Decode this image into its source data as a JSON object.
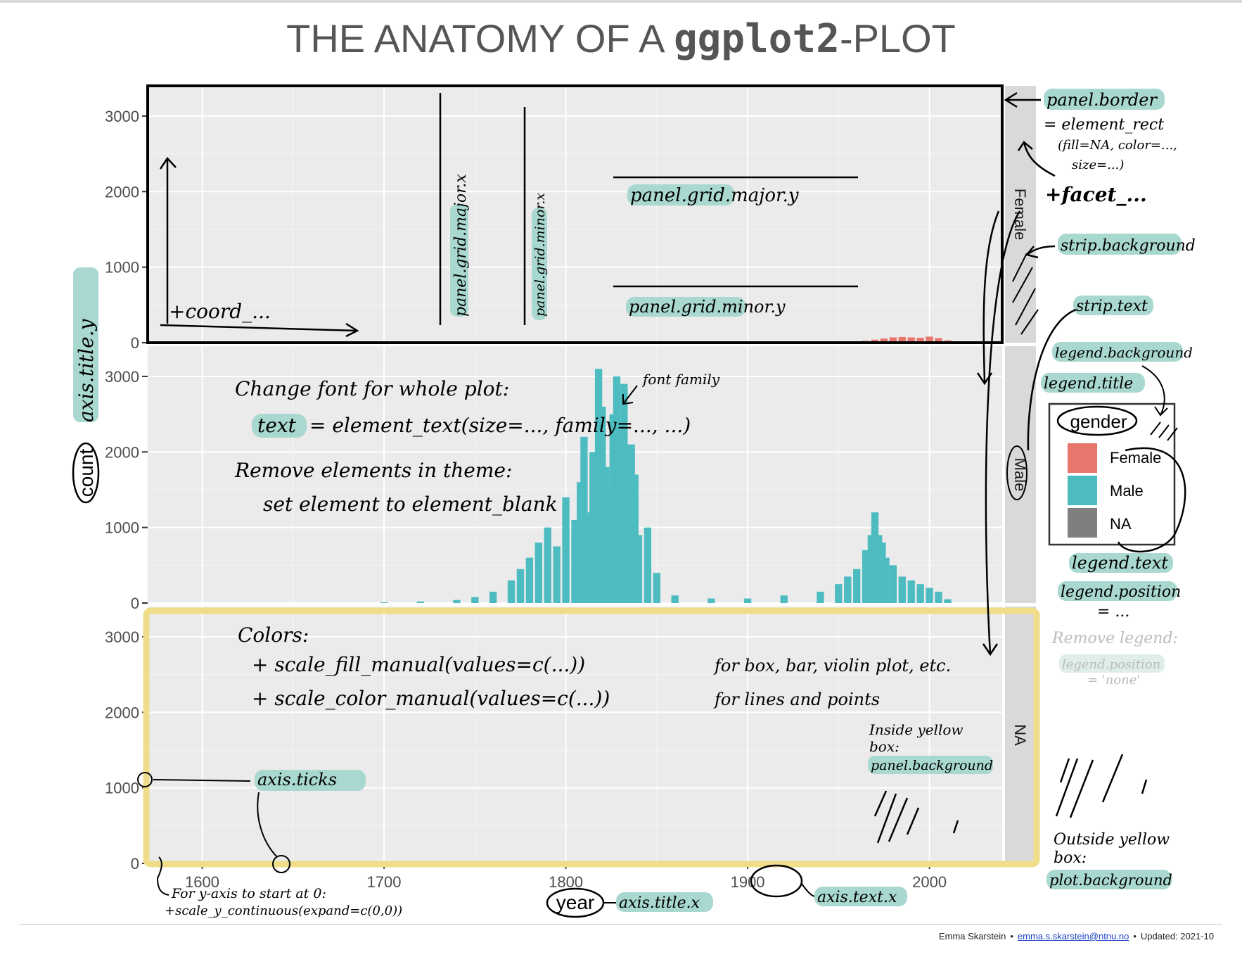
{
  "title": {
    "prefix": "THE ANATOMY OF A ",
    "mono": "ggplot2",
    "suffix": "-PLOT"
  },
  "footer": {
    "author": "Emma Skarstein",
    "email": "emma.s.skarstein@ntnu.no",
    "updated": "Updated: 2021-10"
  },
  "colors": {
    "panel_bg": "#ebebeb",
    "grid_major": "#ffffff",
    "strip_bg": "#d9d9d9",
    "female": "#e8766d",
    "male": "#4dbcc1",
    "na": "#7f7f7f",
    "highlight": "#a8d8cf",
    "yellow": "#f0dd8a"
  },
  "chart_data": {
    "type": "bar",
    "facets": [
      "Female",
      "Male",
      "NA"
    ],
    "x": {
      "title": "year",
      "lim": [
        1570,
        2040
      ],
      "ticks": [
        1600,
        1700,
        1800,
        1900,
        2000
      ],
      "tick_labels": [
        "1600",
        "1700",
        "1800",
        "1900",
        "2000"
      ]
    },
    "y": {
      "title": "count",
      "lim": [
        0,
        3400
      ],
      "ticks": [
        0,
        1000,
        2000,
        3000
      ],
      "tick_labels": [
        "0",
        "1000",
        "2000",
        "3000"
      ]
    },
    "legend": {
      "title": "gender",
      "position": "right",
      "entries": [
        "Female",
        "Male",
        "NA"
      ]
    },
    "grid": true,
    "series": [
      {
        "name": "Female",
        "x": [
          1960,
          1965,
          1970,
          1975,
          1980,
          1985,
          1990,
          1995,
          2000,
          2005,
          2010
        ],
        "values": [
          15,
          25,
          40,
          55,
          70,
          75,
          70,
          65,
          80,
          60,
          30
        ]
      },
      {
        "name": "Male",
        "x": [
          1700,
          1720,
          1740,
          1750,
          1760,
          1770,
          1775,
          1780,
          1785,
          1790,
          1795,
          1800,
          1805,
          1808,
          1810,
          1812,
          1815,
          1818,
          1820,
          1822,
          1824,
          1826,
          1828,
          1830,
          1832,
          1834,
          1836,
          1838,
          1840,
          1845,
          1850,
          1860,
          1880,
          1900,
          1920,
          1940,
          1950,
          1955,
          1960,
          1965,
          1968,
          1970,
          1972,
          1974,
          1976,
          1980,
          1985,
          1990,
          1995,
          2000,
          2005,
          2010
        ],
        "values": [
          10,
          20,
          40,
          80,
          150,
          300,
          450,
          600,
          800,
          1000,
          750,
          1400,
          1100,
          1600,
          2200,
          1200,
          2000,
          3100,
          2600,
          1800,
          1500,
          2500,
          3000,
          2300,
          2900,
          1400,
          2100,
          1700,
          900,
          1000,
          400,
          100,
          60,
          60,
          100,
          150,
          250,
          350,
          450,
          700,
          900,
          1200,
          900,
          800,
          600,
          500,
          350,
          300,
          250,
          200,
          150,
          50
        ]
      },
      {
        "name": "NA",
        "x": [
          1780,
          1800,
          1820,
          1840,
          1900,
          1950,
          2000
        ],
        "values": [
          5,
          8,
          10,
          6,
          4,
          5,
          8
        ]
      }
    ]
  },
  "annotations": {
    "axis_title_y": "axis.title.y",
    "coord": "+coord_...",
    "grid_major_x": "panel.grid.major.x",
    "grid_minor_x": "panel.grid.minor.x",
    "grid_major_y": "panel.grid.major.y",
    "grid_minor_y": "panel.grid.minor.y",
    "panel_border": "panel.border",
    "panel_border_eq": "= element_rect",
    "panel_border_args1": "(fill=NA, color=...,",
    "panel_border_args2": "size=...)",
    "facet": "+facet_...",
    "strip_background": "strip.background",
    "strip_text": "strip.text",
    "legend_background": "legend.background",
    "legend_title": "legend.title",
    "legend_text": "legend.text",
    "legend_position": "legend.position",
    "legend_position_eq": "= ...",
    "remove_legend": "Remove legend:",
    "remove_legend_code": "legend.position",
    "remove_legend_val": "= 'none'",
    "font_change": "Change font for whole plot:",
    "font_text_key": "text",
    "font_text_rest": "= element_text(size=..., family=..., ...)",
    "font_family": "font family",
    "remove_elements": "Remove elements in theme:",
    "remove_elements_2": "set element to element_blank",
    "colors_title": "Colors:",
    "fill_manual": "+ scale_fill_manual(values=c(...))",
    "fill_manual_note": "for box, bar, violin plot, etc.",
    "color_manual": "+ scale_color_manual(values=c(...))",
    "color_manual_note": "for lines and points",
    "inside_yellow_1": "Inside yellow",
    "inside_yellow_2": "box:",
    "panel_background": "panel.background",
    "axis_ticks": "axis.ticks",
    "outside_yellow_1": "Outside yellow",
    "outside_yellow_2": "box:",
    "plot_background": "plot.background",
    "expand_1": "For y-axis to start at 0:",
    "expand_2": "+scale_y_continuous(expand=c(0,0))",
    "axis_title_x": "axis.title.x",
    "axis_text_x": "axis.text.x"
  }
}
